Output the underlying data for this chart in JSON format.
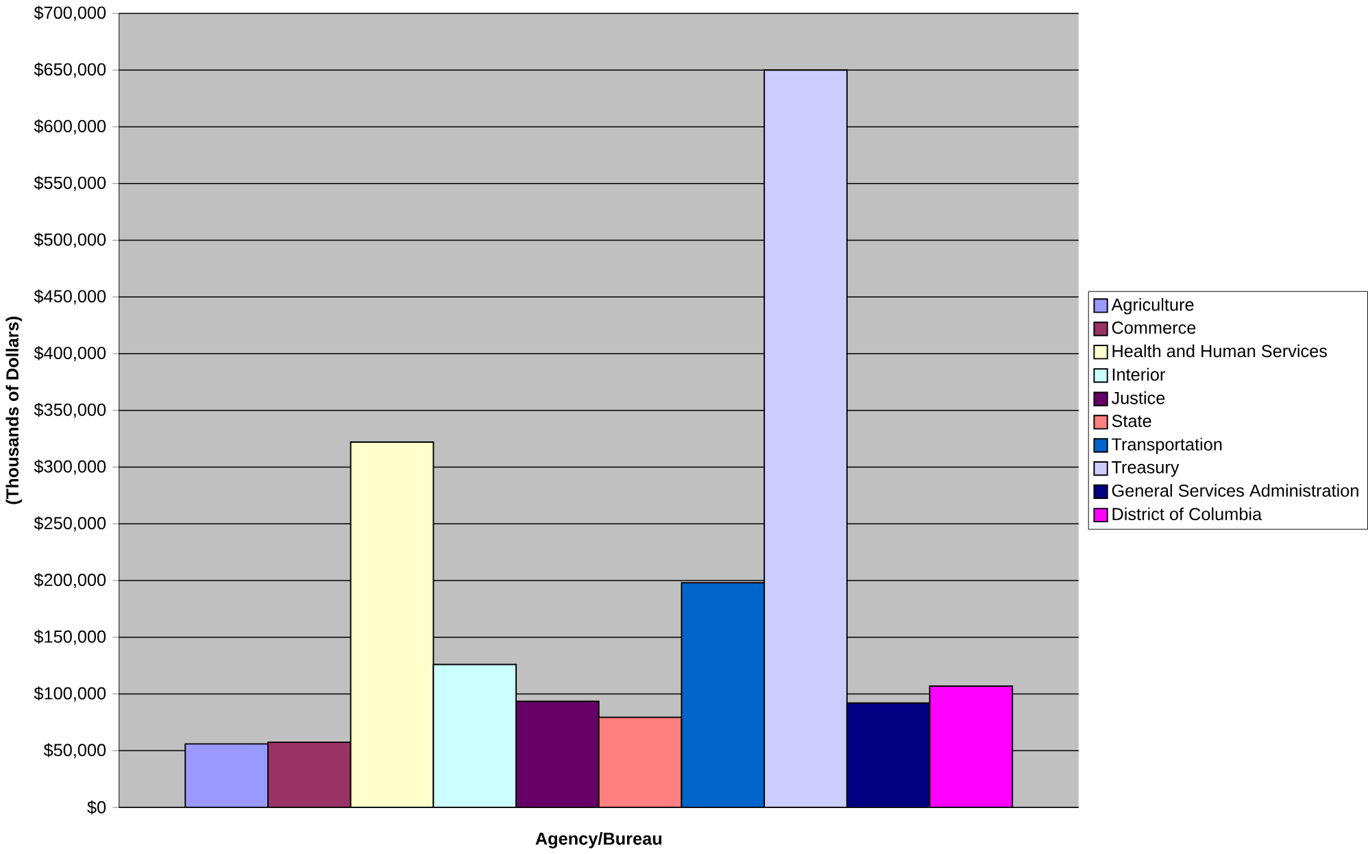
{
  "chart_data": {
    "type": "bar",
    "xlabel": "Agency/Bureau",
    "ylabel": "(Thousands of Dollars)",
    "categories": [
      null
    ],
    "series": [
      {
        "name": "Agriculture",
        "color": "#9999ff",
        "values": [
          56000
        ]
      },
      {
        "name": "Commerce",
        "color": "#993366",
        "values": [
          57500
        ]
      },
      {
        "name": "Health and Human Services",
        "color": "#ffffcc",
        "values": [
          322000
        ]
      },
      {
        "name": "Interior",
        "color": "#ccffff",
        "values": [
          126000
        ]
      },
      {
        "name": "Justice",
        "color": "#660066",
        "values": [
          93500
        ]
      },
      {
        "name": "State",
        "color": "#ff8080",
        "values": [
          79500
        ]
      },
      {
        "name": "Transportation",
        "color": "#0066cc",
        "values": [
          198000
        ]
      },
      {
        "name": "Treasury",
        "color": "#ccccff",
        "values": [
          650000
        ]
      },
      {
        "name": "General Services Administration",
        "color": "#000080",
        "values": [
          92000
        ]
      },
      {
        "name": "District of Columbia",
        "color": "#ff00ff",
        "values": [
          107000
        ]
      }
    ],
    "ylim": [
      0,
      700000
    ],
    "yticks": [
      {
        "value": 0,
        "label": "$0"
      },
      {
        "value": 50000,
        "label": "$50,000"
      },
      {
        "value": 100000,
        "label": "$100,000"
      },
      {
        "value": 150000,
        "label": "$150,000"
      },
      {
        "value": 200000,
        "label": "$200,000"
      },
      {
        "value": 250000,
        "label": "$250,000"
      },
      {
        "value": 300000,
        "label": "$300,000"
      },
      {
        "value": 350000,
        "label": "$350,000"
      },
      {
        "value": 400000,
        "label": "$400,000"
      },
      {
        "value": 450000,
        "label": "$450,000"
      },
      {
        "value": 500000,
        "label": "$500,000"
      },
      {
        "value": 550000,
        "label": "$550,000"
      },
      {
        "value": 600000,
        "label": "$600,000"
      },
      {
        "value": 650000,
        "label": "$650,000"
      },
      {
        "value": 700000,
        "label": "$700,000"
      }
    ],
    "grid": "y",
    "legend": "right"
  }
}
